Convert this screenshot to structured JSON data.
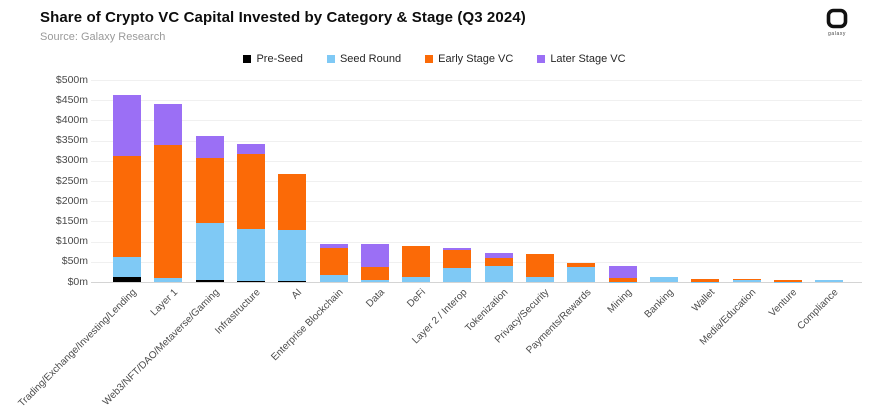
{
  "header": {
    "title": "Share of Crypto VC Capital Invested by Category & Stage (Q3 2024)",
    "source": "Source: Galaxy Research",
    "logo_wordmark": "galaxy"
  },
  "chart_data": {
    "type": "bar",
    "stacked": true,
    "title": "Share of Crypto VC Capital Invested by Category & Stage (Q3 2024)",
    "xlabel": "",
    "ylabel": "",
    "ylim": [
      0,
      500
    ],
    "ytick_step": 50,
    "yticks": [
      "$500m",
      "$450m",
      "$400m",
      "$350m",
      "$300m",
      "$250m",
      "$200m",
      "$150m",
      "$100m",
      "$50m",
      "$0m"
    ],
    "grid": true,
    "legend_position": "top",
    "categories": [
      "Trading/Exchange/Investing/Lending",
      "Layer 1",
      "Web3/NFT/DAO/Metaverse/Gaming",
      "Infrastructure",
      "AI",
      "Enterprise Blockchain",
      "Data",
      "DeFi",
      "Layer 2 / Interop",
      "Tokenization",
      "Privacy/Security",
      "Payments/Rewards",
      "Mining",
      "Banking",
      "Wallet",
      "Media/Education",
      "Venture",
      "Compliance"
    ],
    "value_unit": "$m",
    "series": [
      {
        "name": "Pre-Seed",
        "color": "#000000",
        "values": [
          13,
          0,
          4,
          2,
          2,
          0,
          0,
          0,
          0,
          0,
          0,
          0,
          0,
          0,
          0,
          0,
          0,
          0
        ]
      },
      {
        "name": "Seed Round",
        "color": "#7FC9F5",
        "values": [
          49,
          11,
          141,
          129,
          128,
          17,
          6,
          13,
          34,
          40,
          12,
          36,
          1,
          13,
          1,
          6,
          1,
          4
        ]
      },
      {
        "name": "Early Stage VC",
        "color": "#FB6A07",
        "values": [
          251,
          329,
          163,
          185,
          137,
          66,
          32,
          75,
          46,
          20,
          58,
          10,
          8,
          0,
          7,
          1,
          5,
          0
        ]
      },
      {
        "name": "Later Stage VC",
        "color": "#9B6FF5",
        "values": [
          149,
          101,
          53,
          26,
          0,
          12,
          56,
          0,
          5,
          11,
          0,
          0,
          31,
          0,
          0,
          0,
          0,
          0
        ]
      }
    ],
    "totals": [
      462,
      441,
      361,
      342,
      267,
      95,
      94,
      88,
      85,
      71,
      70,
      46,
      40,
      13,
      8,
      7,
      6,
      4
    ]
  }
}
